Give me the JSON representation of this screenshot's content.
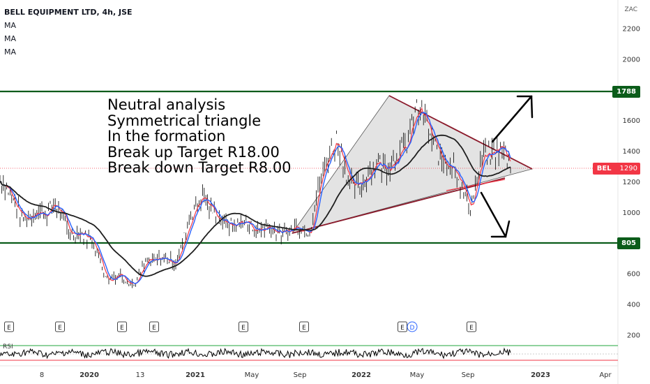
{
  "header": {
    "title": "BELL EQUIPMENT LTD, 4h, JSE",
    "indicators": [
      "MA",
      "MA",
      "MA"
    ]
  },
  "annotation": {
    "lines": [
      "Neutral analysis",
      "Symmetrical triangle",
      "In the formation",
      "Break up Target R18.00",
      "Break down Target R8.00"
    ]
  },
  "price_axis": {
    "currency": "ZAC",
    "ticks": [
      "2200",
      "2000",
      "1800",
      "1600",
      "1400",
      "1200",
      "1000",
      "800",
      "600",
      "400",
      "200"
    ]
  },
  "time_axis": {
    "ticks": [
      "8",
      "2020",
      "13",
      "2021",
      "May",
      "Sep",
      "2022",
      "May",
      "Sep",
      "2023",
      "Apr"
    ]
  },
  "levels": {
    "upper": "1788",
    "lower": "805"
  },
  "symbol_badge": {
    "symbol": "BEL",
    "price": "1290"
  },
  "events": {
    "markers": [
      "E",
      "E",
      "E",
      "E",
      "E",
      "E",
      "E",
      "D",
      "E"
    ]
  },
  "rsi": {
    "label": "RSI"
  },
  "colors": {
    "up_candle": "#000000",
    "ma_fast": "#2962ff",
    "ma_mid": "#f23645",
    "ma_slow": "#1e1e1e",
    "level_line": "#0b5c1a",
    "triangle_fill": "#d9d9d9",
    "resistance_line": "#8b1a2b",
    "support_line": "#c2185b",
    "bel_badge": "#f23645"
  },
  "chart_data": {
    "type": "line",
    "title": "BELL EQUIPMENT LTD, 4h, JSE",
    "ylabel": "ZAC",
    "xlabel": "",
    "y_scale": "linear",
    "ylim": [
      200,
      2300
    ],
    "price_path": [
      {
        "x": "2019-07",
        "y": 1200
      },
      {
        "x": "2019-09",
        "y": 950
      },
      {
        "x": "2019-11",
        "y": 1050
      },
      {
        "x": "2019-12",
        "y": 900
      },
      {
        "x": "2020-01",
        "y": 850
      },
      {
        "x": "2020-02",
        "y": 800
      },
      {
        "x": "2020-03",
        "y": 550
      },
      {
        "x": "2020-04",
        "y": 600
      },
      {
        "x": "2020-05",
        "y": 520
      },
      {
        "x": "2020-06",
        "y": 700
      },
      {
        "x": "2020-08",
        "y": 680
      },
      {
        "x": "2020-10",
        "y": 1150
      },
      {
        "x": "2020-11",
        "y": 950
      },
      {
        "x": "2021-01",
        "y": 920
      },
      {
        "x": "2021-04",
        "y": 880
      },
      {
        "x": "2021-06",
        "y": 900
      },
      {
        "x": "2021-07",
        "y": 1250
      },
      {
        "x": "2021-08",
        "y": 1520
      },
      {
        "x": "2021-09",
        "y": 1150
      },
      {
        "x": "2021-11",
        "y": 1300
      },
      {
        "x": "2022-01",
        "y": 1380
      },
      {
        "x": "2022-02",
        "y": 1720
      },
      {
        "x": "2022-03",
        "y": 1480
      },
      {
        "x": "2022-05",
        "y": 1250
      },
      {
        "x": "2022-06",
        "y": 1050
      },
      {
        "x": "2022-07",
        "y": 1350
      },
      {
        "x": "2022-08",
        "y": 1450
      },
      {
        "x": "2022-09",
        "y": 1290
      }
    ],
    "levels": [
      1788,
      805
    ],
    "last_price": 1290,
    "triangle": {
      "apex_top": {
        "x": "2022-02",
        "y": 1760
      },
      "apex_bottom": {
        "x": "2021-07",
        "y": 860
      },
      "apex_right": {
        "x": "2022-12",
        "y": 1280
      }
    },
    "grid": false,
    "legend": "top-left"
  }
}
